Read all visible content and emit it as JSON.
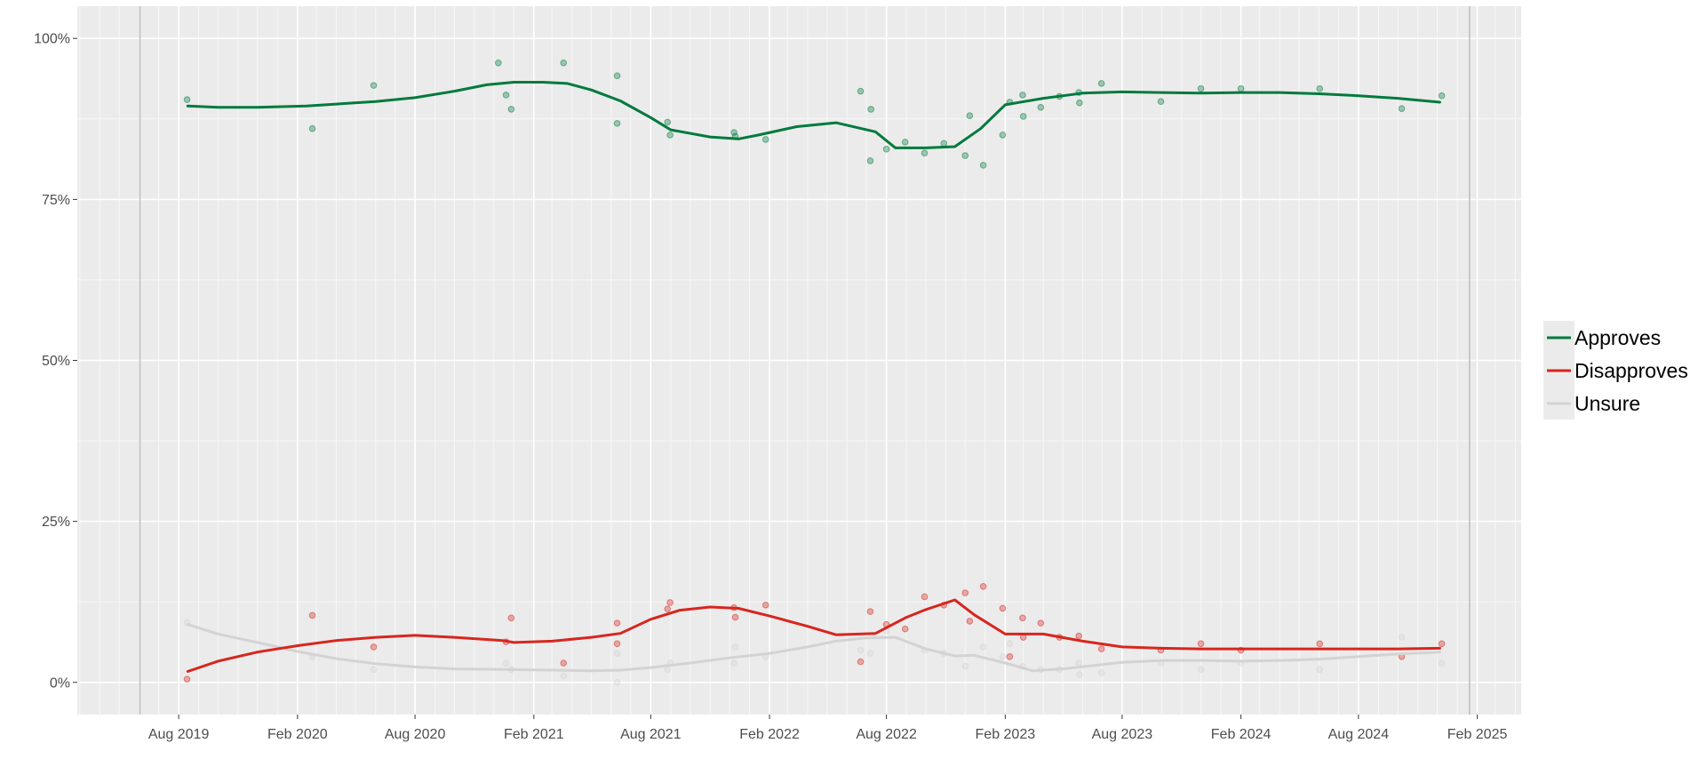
{
  "chart_data": {
    "type": "line",
    "title": "",
    "xlabel": "",
    "ylabel": "",
    "xlim": [
      "2019-02-25",
      "2025-04-10"
    ],
    "ylim": [
      -0.05,
      1.05
    ],
    "y_ticks": [
      {
        "value": 0,
        "label": "0%"
      },
      {
        "value": 0.25,
        "label": "25%"
      },
      {
        "value": 0.5,
        "label": "50%"
      },
      {
        "value": 0.75,
        "label": "75%"
      },
      {
        "value": 1,
        "label": "100%"
      }
    ],
    "x_ticks": [
      {
        "date": "2019-08-01",
        "label": "Aug 2019"
      },
      {
        "date": "2020-02-01",
        "label": "Feb 2020"
      },
      {
        "date": "2020-08-01",
        "label": "Aug 2020"
      },
      {
        "date": "2021-02-01",
        "label": "Feb 2021"
      },
      {
        "date": "2021-08-01",
        "label": "Aug 2021"
      },
      {
        "date": "2022-02-01",
        "label": "Feb 2022"
      },
      {
        "date": "2022-08-01",
        "label": "Aug 2022"
      },
      {
        "date": "2023-02-01",
        "label": "Feb 2023"
      },
      {
        "date": "2023-08-01",
        "label": "Aug 2023"
      },
      {
        "date": "2024-02-01",
        "label": "Feb 2024"
      },
      {
        "date": "2024-08-01",
        "label": "Aug 2024"
      },
      {
        "date": "2025-02-01",
        "label": "Feb 2025"
      }
    ],
    "reference_lines": [
      "2019-06-02",
      "2025-01-20"
    ],
    "grid": true,
    "legend_position": "right",
    "series": [
      {
        "name": "Approves",
        "color": "#007a3d",
        "line": [
          [
            "2019-08-15",
            0.895
          ],
          [
            "2019-10-01",
            0.893
          ],
          [
            "2019-12-01",
            0.893
          ],
          [
            "2020-02-15",
            0.895
          ],
          [
            "2020-04-01",
            0.898
          ],
          [
            "2020-06-01",
            0.902
          ],
          [
            "2020-08-01",
            0.908
          ],
          [
            "2020-10-01",
            0.918
          ],
          [
            "2020-11-20",
            0.928
          ],
          [
            "2021-01-01",
            0.932
          ],
          [
            "2021-02-15",
            0.932
          ],
          [
            "2021-03-25",
            0.93
          ],
          [
            "2021-05-01",
            0.92
          ],
          [
            "2021-06-15",
            0.903
          ],
          [
            "2021-08-01",
            0.877
          ],
          [
            "2021-09-01",
            0.858
          ],
          [
            "2021-11-01",
            0.847
          ],
          [
            "2021-12-15",
            0.844
          ],
          [
            "2022-01-15",
            0.85
          ],
          [
            "2022-03-15",
            0.863
          ],
          [
            "2022-05-15",
            0.869
          ],
          [
            "2022-07-15",
            0.855
          ],
          [
            "2022-08-15",
            0.83
          ],
          [
            "2022-10-01",
            0.83
          ],
          [
            "2022-11-15",
            0.832
          ],
          [
            "2022-12-25",
            0.86
          ],
          [
            "2023-02-01",
            0.897
          ],
          [
            "2023-04-01",
            0.907
          ],
          [
            "2023-06-01",
            0.915
          ],
          [
            "2023-08-01",
            0.917
          ],
          [
            "2023-10-01",
            0.916
          ],
          [
            "2023-12-01",
            0.915
          ],
          [
            "2024-02-01",
            0.916
          ],
          [
            "2024-04-01",
            0.916
          ],
          [
            "2024-06-01",
            0.914
          ],
          [
            "2024-08-01",
            0.911
          ],
          [
            "2024-10-01",
            0.907
          ],
          [
            "2024-12-05",
            0.901
          ]
        ],
        "points": [
          [
            "2019-08-14",
            0.905
          ],
          [
            "2020-02-24",
            0.86
          ],
          [
            "2020-05-29",
            0.927
          ],
          [
            "2020-12-08",
            0.962
          ],
          [
            "2020-12-20",
            0.912
          ],
          [
            "2020-12-28",
            0.89
          ],
          [
            "2021-03-19",
            0.962
          ],
          [
            "2021-06-10",
            0.868
          ],
          [
            "2021-06-10",
            0.942
          ],
          [
            "2021-08-27",
            0.87
          ],
          [
            "2021-08-31",
            0.85
          ],
          [
            "2021-12-08",
            0.854
          ],
          [
            "2021-12-10",
            0.848
          ],
          [
            "2022-01-26",
            0.843
          ],
          [
            "2022-06-22",
            0.918
          ],
          [
            "2022-07-07",
            0.81
          ],
          [
            "2022-07-08",
            0.89
          ],
          [
            "2022-08-01",
            0.828
          ],
          [
            "2022-08-30",
            0.839
          ],
          [
            "2022-09-29",
            0.822
          ],
          [
            "2022-10-29",
            0.837
          ],
          [
            "2022-12-01",
            0.818
          ],
          [
            "2022-12-08",
            0.88
          ],
          [
            "2022-12-29",
            0.803
          ],
          [
            "2023-01-28",
            0.85
          ],
          [
            "2023-02-08",
            0.901
          ],
          [
            "2023-02-28",
            0.912
          ],
          [
            "2023-03-01",
            0.879
          ],
          [
            "2023-03-28",
            0.893
          ],
          [
            "2023-04-26",
            0.91
          ],
          [
            "2023-05-26",
            0.916
          ],
          [
            "2023-05-27",
            0.9
          ],
          [
            "2023-06-30",
            0.93
          ],
          [
            "2023-09-30",
            0.902
          ],
          [
            "2023-12-01",
            0.922
          ],
          [
            "2024-02-01",
            0.922
          ],
          [
            "2024-06-02",
            0.922
          ],
          [
            "2024-10-07",
            0.891
          ],
          [
            "2024-12-08",
            0.911
          ]
        ]
      },
      {
        "name": "Disapproves",
        "color": "#d7261e",
        "line": [
          [
            "2019-08-15",
            0.017
          ],
          [
            "2019-10-01",
            0.033
          ],
          [
            "2019-12-01",
            0.047
          ],
          [
            "2020-02-01",
            0.057
          ],
          [
            "2020-04-01",
            0.065
          ],
          [
            "2020-06-01",
            0.07
          ],
          [
            "2020-08-01",
            0.073
          ],
          [
            "2020-10-01",
            0.07
          ],
          [
            "2020-12-15",
            0.065
          ],
          [
            "2021-01-01",
            0.062
          ],
          [
            "2021-03-01",
            0.064
          ],
          [
            "2021-05-01",
            0.07
          ],
          [
            "2021-06-15",
            0.076
          ],
          [
            "2021-08-01",
            0.098
          ],
          [
            "2021-09-15",
            0.112
          ],
          [
            "2021-11-01",
            0.117
          ],
          [
            "2021-12-15",
            0.115
          ],
          [
            "2022-02-01",
            0.103
          ],
          [
            "2022-04-01",
            0.087
          ],
          [
            "2022-05-15",
            0.074
          ],
          [
            "2022-07-15",
            0.076
          ],
          [
            "2022-09-01",
            0.101
          ],
          [
            "2022-10-01",
            0.113
          ],
          [
            "2022-11-15",
            0.128
          ],
          [
            "2022-12-15",
            0.105
          ],
          [
            "2023-02-01",
            0.075
          ],
          [
            "2023-04-01",
            0.075
          ],
          [
            "2023-06-01",
            0.064
          ],
          [
            "2023-08-01",
            0.055
          ],
          [
            "2023-10-01",
            0.053
          ],
          [
            "2023-12-01",
            0.052
          ],
          [
            "2024-02-01",
            0.052
          ],
          [
            "2024-04-01",
            0.052
          ],
          [
            "2024-06-01",
            0.052
          ],
          [
            "2024-08-01",
            0.052
          ],
          [
            "2024-10-01",
            0.052
          ],
          [
            "2024-12-05",
            0.053
          ]
        ],
        "points": [
          [
            "2019-08-14",
            0.005
          ],
          [
            "2020-02-24",
            0.104
          ],
          [
            "2020-05-29",
            0.055
          ],
          [
            "2020-12-20",
            0.063
          ],
          [
            "2020-12-28",
            0.1
          ],
          [
            "2021-03-19",
            0.03
          ],
          [
            "2021-06-10",
            0.092
          ],
          [
            "2021-06-10",
            0.06
          ],
          [
            "2021-08-27",
            0.114
          ],
          [
            "2021-08-31",
            0.124
          ],
          [
            "2021-12-08",
            0.116
          ],
          [
            "2021-12-10",
            0.101
          ],
          [
            "2022-01-26",
            0.12
          ],
          [
            "2022-06-22",
            0.032
          ],
          [
            "2022-07-07",
            0.11
          ],
          [
            "2022-08-01",
            0.09
          ],
          [
            "2022-08-30",
            0.083
          ],
          [
            "2022-09-29",
            0.133
          ],
          [
            "2022-10-29",
            0.12
          ],
          [
            "2022-12-01",
            0.139
          ],
          [
            "2022-12-08",
            0.095
          ],
          [
            "2022-12-29",
            0.149
          ],
          [
            "2023-01-28",
            0.115
          ],
          [
            "2023-02-08",
            0.04
          ],
          [
            "2023-02-28",
            0.1
          ],
          [
            "2023-03-01",
            0.07
          ],
          [
            "2023-03-28",
            0.092
          ],
          [
            "2023-04-26",
            0.07
          ],
          [
            "2023-05-26",
            0.072
          ],
          [
            "2023-06-30",
            0.052
          ],
          [
            "2023-09-30",
            0.05
          ],
          [
            "2023-12-01",
            0.06
          ],
          [
            "2024-02-01",
            0.05
          ],
          [
            "2024-06-02",
            0.06
          ],
          [
            "2024-10-07",
            0.04
          ],
          [
            "2024-12-08",
            0.06
          ]
        ]
      },
      {
        "name": "Unsure",
        "color": "#d3d3d3",
        "line": [
          [
            "2019-08-15",
            0.09
          ],
          [
            "2019-10-01",
            0.075
          ],
          [
            "2019-12-01",
            0.062
          ],
          [
            "2020-02-01",
            0.048
          ],
          [
            "2020-04-01",
            0.037
          ],
          [
            "2020-06-01",
            0.029
          ],
          [
            "2020-08-01",
            0.024
          ],
          [
            "2020-10-01",
            0.021
          ],
          [
            "2020-12-15",
            0.02
          ],
          [
            "2021-03-01",
            0.019
          ],
          [
            "2021-05-01",
            0.018
          ],
          [
            "2021-06-15",
            0.019
          ],
          [
            "2021-08-01",
            0.023
          ],
          [
            "2021-10-01",
            0.03
          ],
          [
            "2021-12-01",
            0.038
          ],
          [
            "2022-02-01",
            0.045
          ],
          [
            "2022-04-01",
            0.055
          ],
          [
            "2022-05-15",
            0.064
          ],
          [
            "2022-07-01",
            0.069
          ],
          [
            "2022-08-15",
            0.07
          ],
          [
            "2022-10-01",
            0.052
          ],
          [
            "2022-11-15",
            0.041
          ],
          [
            "2022-12-15",
            0.042
          ],
          [
            "2023-02-01",
            0.03
          ],
          [
            "2023-03-15",
            0.018
          ],
          [
            "2023-05-01",
            0.021
          ],
          [
            "2023-08-01",
            0.031
          ],
          [
            "2023-10-01",
            0.034
          ],
          [
            "2023-12-01",
            0.034
          ],
          [
            "2024-02-01",
            0.033
          ],
          [
            "2024-04-01",
            0.034
          ],
          [
            "2024-06-01",
            0.036
          ],
          [
            "2024-08-01",
            0.04
          ],
          [
            "2024-10-01",
            0.044
          ],
          [
            "2024-12-05",
            0.047
          ]
        ],
        "points": [
          [
            "2019-08-14",
            0.093
          ],
          [
            "2020-02-24",
            0.04
          ],
          [
            "2020-05-29",
            0.02
          ],
          [
            "2020-12-20",
            0.03
          ],
          [
            "2020-12-28",
            0.02
          ],
          [
            "2021-03-19",
            0.01
          ],
          [
            "2021-06-10",
            0.0
          ],
          [
            "2021-06-10",
            0.045
          ],
          [
            "2021-08-27",
            0.02
          ],
          [
            "2021-08-31",
            0.03
          ],
          [
            "2021-12-08",
            0.03
          ],
          [
            "2021-12-10",
            0.055
          ],
          [
            "2022-01-26",
            0.04
          ],
          [
            "2022-06-22",
            0.05
          ],
          [
            "2022-07-07",
            0.045
          ],
          [
            "2022-08-01",
            0.08
          ],
          [
            "2022-09-29",
            0.05
          ],
          [
            "2022-10-29",
            0.045
          ],
          [
            "2022-12-01",
            0.025
          ],
          [
            "2022-12-29",
            0.055
          ],
          [
            "2023-01-28",
            0.04
          ],
          [
            "2023-02-08",
            0.06
          ],
          [
            "2023-02-28",
            0.025
          ],
          [
            "2023-03-28",
            0.02
          ],
          [
            "2023-04-26",
            0.02
          ],
          [
            "2023-05-26",
            0.03
          ],
          [
            "2023-05-27",
            0.012
          ],
          [
            "2023-06-30",
            0.015
          ],
          [
            "2023-09-30",
            0.03
          ],
          [
            "2023-12-01",
            0.02
          ],
          [
            "2024-02-01",
            0.03
          ],
          [
            "2024-06-02",
            0.02
          ],
          [
            "2024-10-07",
            0.07
          ],
          [
            "2024-12-08",
            0.03
          ]
        ]
      }
    ]
  }
}
